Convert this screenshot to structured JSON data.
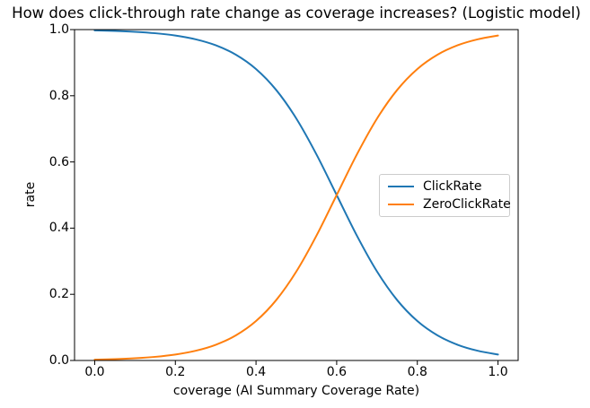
{
  "chart_data": {
    "type": "line",
    "title": "How does click-through rate change as coverage increases? (Logistic model)",
    "xlabel": "coverage (AI Summary Coverage Rate)",
    "ylabel": "rate",
    "xlim": [
      -0.05,
      1.05
    ],
    "ylim": [
      0.0,
      1.0
    ],
    "xticks": [
      "0.0",
      "0.2",
      "0.4",
      "0.6",
      "0.8",
      "1.0"
    ],
    "yticks": [
      "0.0",
      "0.2",
      "0.4",
      "0.6",
      "0.8",
      "1.0"
    ],
    "grid": false,
    "legend_position": "center right",
    "frame_color": "#000000",
    "x": [
      0.0,
      0.05,
      0.1,
      0.15,
      0.2,
      0.25,
      0.3,
      0.35,
      0.4,
      0.45,
      0.5,
      0.55,
      0.6,
      0.65,
      0.7,
      0.75,
      0.8,
      0.85,
      0.9,
      0.95,
      1.0
    ],
    "series": [
      {
        "name": "ClickRate",
        "color": "#1f77b4",
        "values": [
          0.9975,
          0.9959,
          0.9933,
          0.989,
          0.982,
          0.9707,
          0.9526,
          0.9241,
          0.8808,
          0.8176,
          0.7311,
          0.6225,
          0.5,
          0.3775,
          0.2689,
          0.1824,
          0.1192,
          0.0759,
          0.0474,
          0.0293,
          0.018
        ]
      },
      {
        "name": "ZeroClickRate",
        "color": "#ff7f0e",
        "values": [
          0.0025,
          0.0041,
          0.0067,
          0.011,
          0.018,
          0.0293,
          0.0474,
          0.0759,
          0.1192,
          0.1824,
          0.2689,
          0.3775,
          0.5,
          0.6225,
          0.7311,
          0.8176,
          0.8808,
          0.9241,
          0.9526,
          0.9707,
          0.982
        ]
      }
    ]
  }
}
